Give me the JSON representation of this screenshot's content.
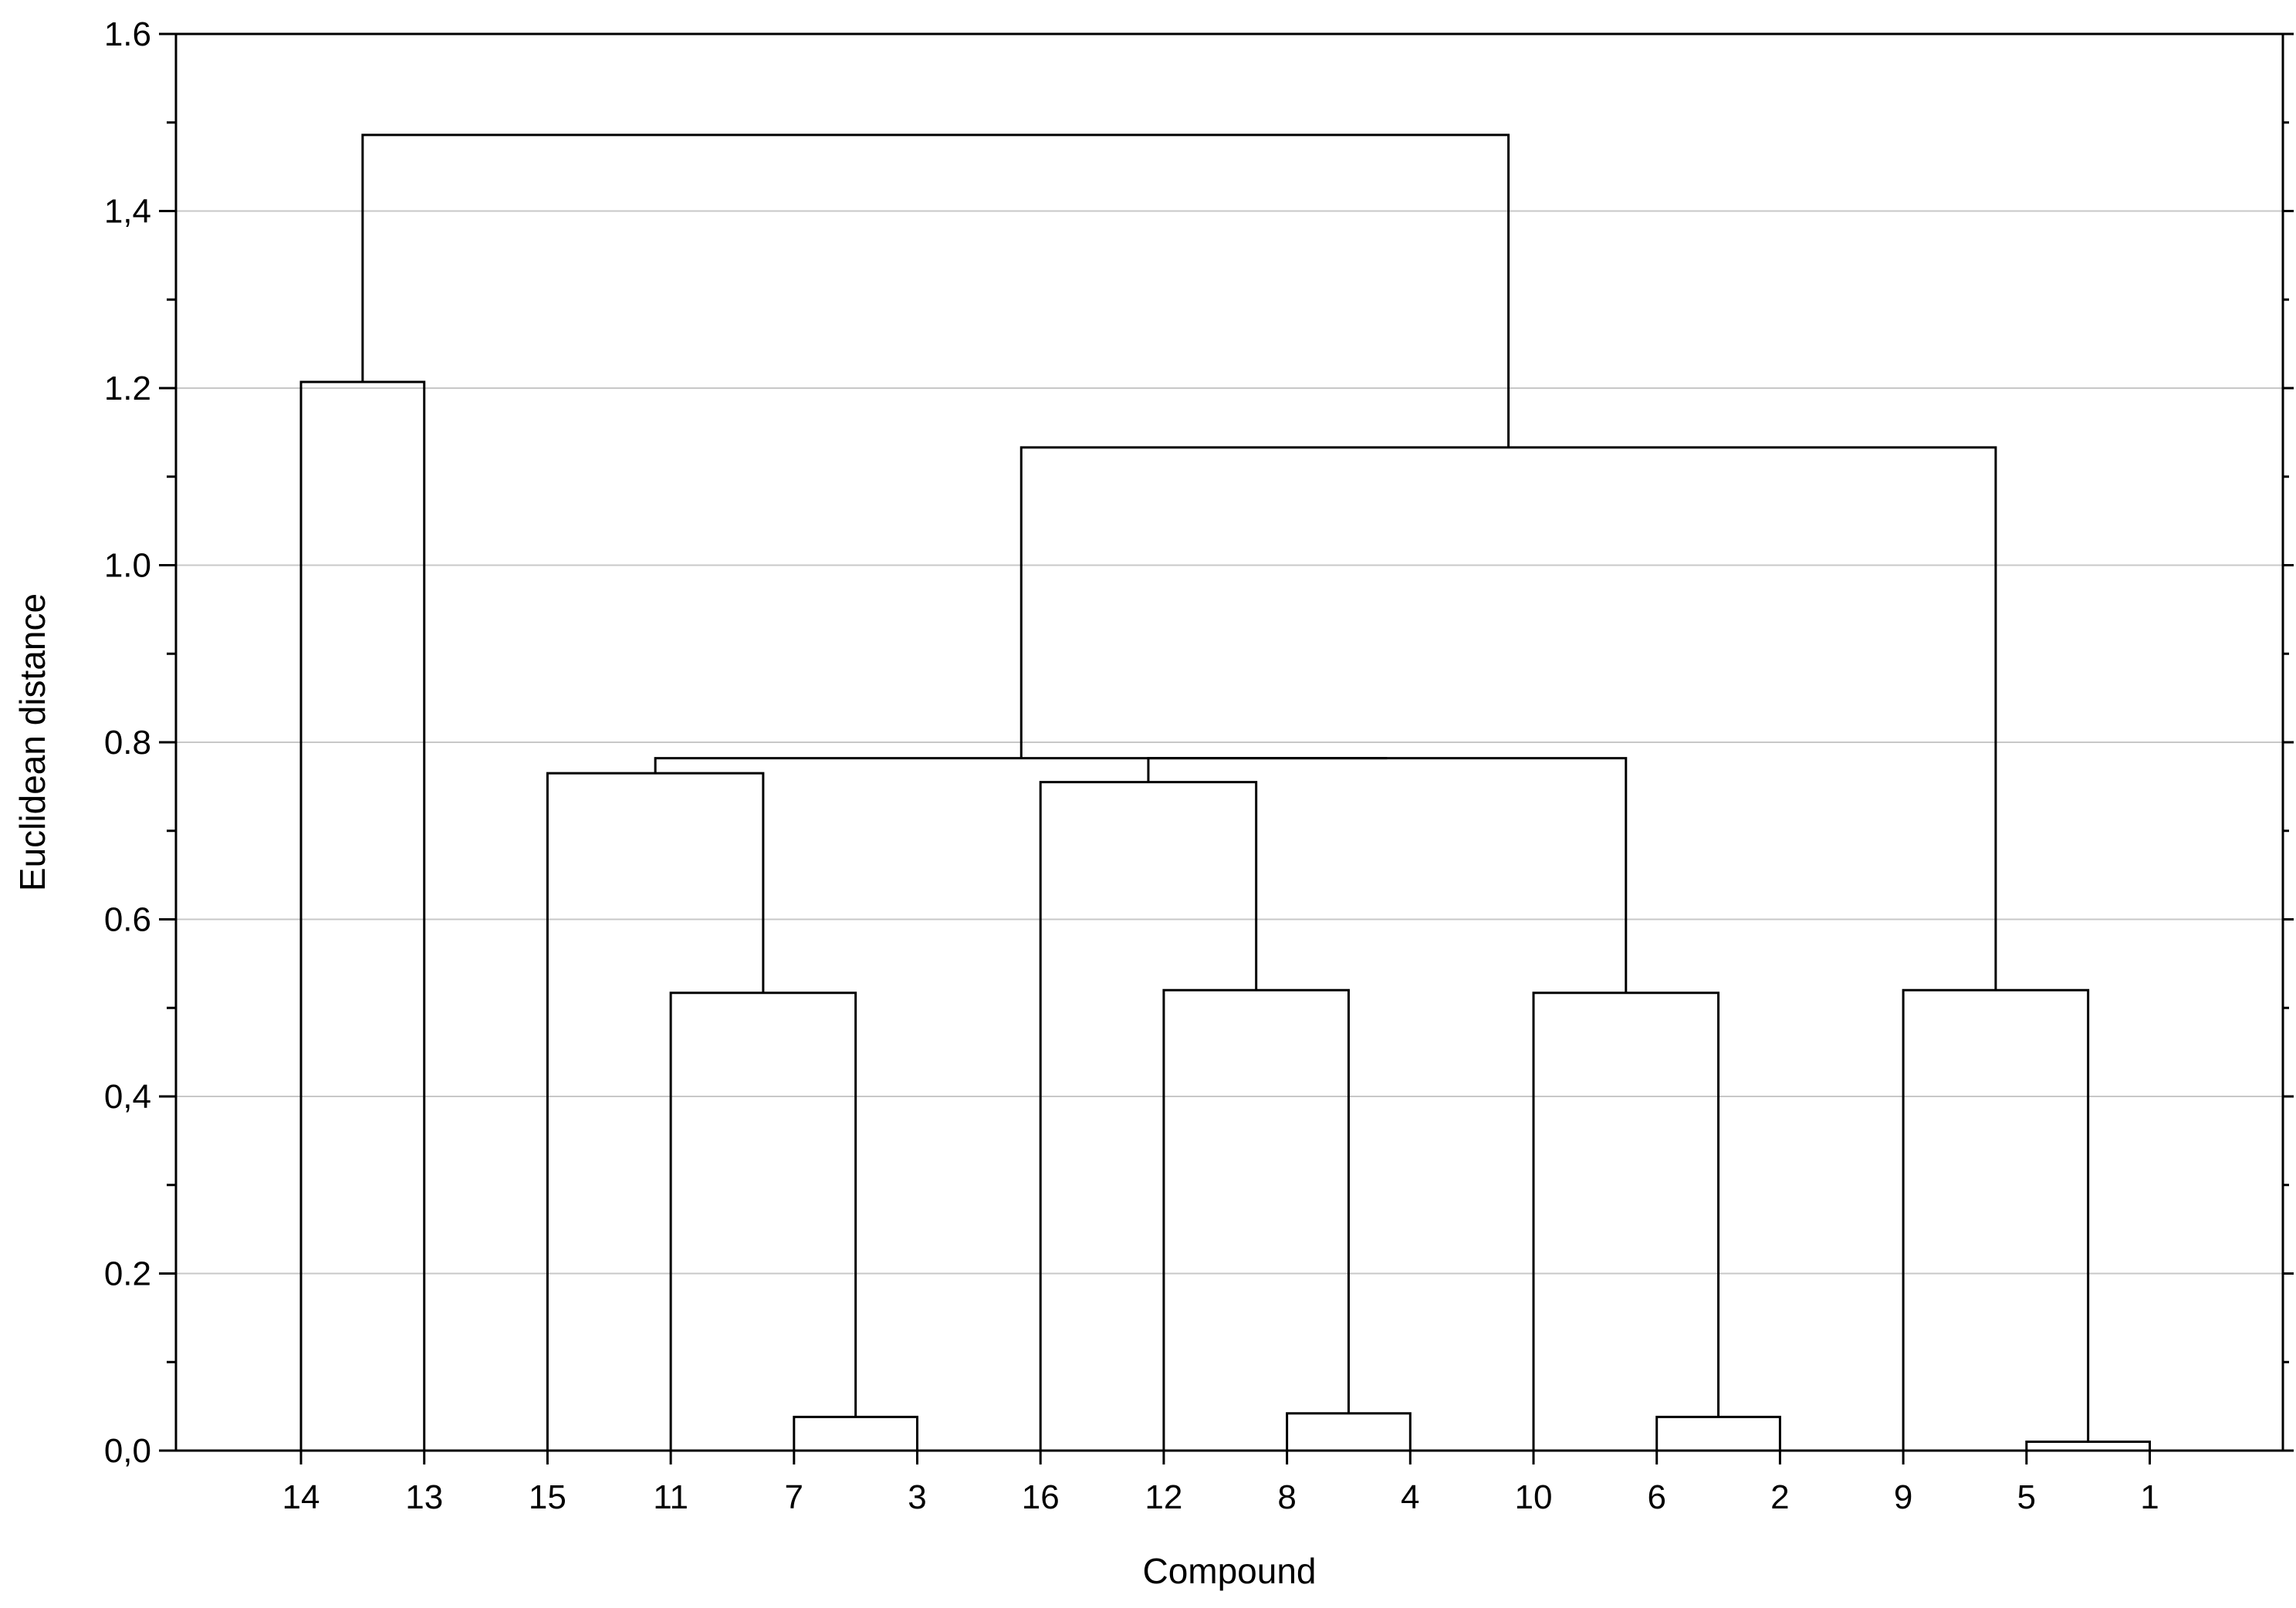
{
  "chart_data": {
    "type": "dendrogram",
    "xlabel": "Compound",
    "ylabel": "Euclidean distance",
    "ylim": [
      0,
      1.6
    ],
    "yticks": [
      0.0,
      0.2,
      0.4,
      0.6,
      0.8,
      1.0,
      1.2,
      1.4,
      1.6
    ],
    "ytick_labels": [
      "0,0",
      "0.2",
      "0,4",
      "0.6",
      "0.8",
      "1.0",
      "1.2",
      "1,4",
      "1.6"
    ],
    "grid": true,
    "leaf_order": [
      "14",
      "13",
      "15",
      "11",
      "7",
      "3",
      "16",
      "12",
      "8",
      "4",
      "10",
      "6",
      "2",
      "9",
      "5",
      "1"
    ],
    "merges": [
      {
        "left": "5",
        "right": "1",
        "height": 0.01
      },
      {
        "left": "7",
        "right": "3",
        "height": 0.038
      },
      {
        "left": "6",
        "right": "2",
        "height": 0.038
      },
      {
        "left": "8",
        "right": "4",
        "height": 0.042
      },
      {
        "left": "11",
        "right": "C2",
        "height": 0.517
      },
      {
        "left": "10",
        "right": "C3",
        "height": 0.517
      },
      {
        "left": "12",
        "right": "C4",
        "height": 0.52
      },
      {
        "left": "9",
        "right": "C1",
        "height": 0.52
      },
      {
        "left": "16",
        "right": "C7",
        "height": 0.755
      },
      {
        "left": "15",
        "right": "C5",
        "height": 0.765
      },
      {
        "left": "C9",
        "right": "C6",
        "height": 0.782
      },
      {
        "left": "C10",
        "right": "C11",
        "height": 0.782
      },
      {
        "left": "C12",
        "right": "C8",
        "height": 1.133
      },
      {
        "left": "14",
        "right": "13",
        "height": 1.207
      },
      {
        "left": "C14",
        "right": "C13",
        "height": 1.486
      }
    ]
  }
}
